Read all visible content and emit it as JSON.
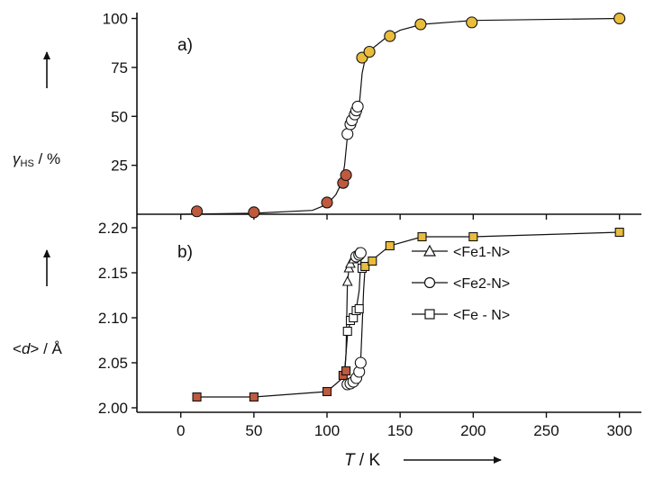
{
  "chart_data": [
    {
      "panel": "a)",
      "type": "scatter",
      "ylabel_symbol": "γ",
      "ylabel_subscript": "HS",
      "ylabel_unit": " / %",
      "yticks": [
        25,
        50,
        75,
        100
      ],
      "ylim": [
        0,
        103
      ],
      "xlim": [
        -30,
        315
      ],
      "line": [
        [
          0,
          0
        ],
        [
          50,
          0.5
        ],
        [
          90,
          2
        ],
        [
          100,
          5
        ],
        [
          106,
          10
        ],
        [
          110,
          16
        ],
        [
          112,
          25
        ],
        [
          114,
          40
        ],
        [
          116,
          47
        ],
        [
          118,
          50
        ],
        [
          120,
          52
        ],
        [
          122,
          55
        ],
        [
          124,
          72
        ],
        [
          126,
          79
        ],
        [
          130,
          84
        ],
        [
          140,
          90
        ],
        [
          150,
          94
        ],
        [
          165,
          97
        ],
        [
          200,
          99
        ],
        [
          300,
          100
        ]
      ],
      "series": [
        {
          "style": "filled-red-circle",
          "points": [
            [
              11,
              1.5
            ],
            [
              50,
              1
            ],
            [
              100,
              6
            ],
            [
              111,
              16
            ],
            [
              113,
              20
            ]
          ]
        },
        {
          "style": "open-circle",
          "points": [
            [
              114,
              41
            ],
            [
              116,
              46
            ],
            [
              117,
              48
            ],
            [
              119,
              51
            ],
            [
              120,
              53
            ],
            [
              121,
              55
            ]
          ]
        },
        {
          "style": "filled-yellow-circle",
          "points": [
            [
              124,
              80
            ],
            [
              129,
              83
            ],
            [
              143,
              91
            ],
            [
              164,
              97
            ],
            [
              199,
              98
            ],
            [
              300,
              100
            ]
          ]
        }
      ]
    },
    {
      "panel": "b)",
      "type": "scatter",
      "ylabel_left": "<",
      "ylabel_symbol": "d",
      "ylabel_right": ">",
      "ylabel_unit": " / Å",
      "yticks": [
        2.0,
        2.05,
        2.1,
        2.15,
        2.2
      ],
      "ytick_labels": [
        "2.00",
        "2.05",
        "2.10",
        "2.15",
        "2.20"
      ],
      "ylim": [
        1.995,
        2.215
      ],
      "xlim": [
        -30,
        315
      ],
      "xticks": [
        0,
        50,
        100,
        150,
        200,
        250,
        300
      ],
      "xlabel_symbol": "T",
      "xlabel_unit": " / K",
      "legend": [
        {
          "label": "<Fe1-N>",
          "marker": "triangle"
        },
        {
          "label": "<Fe2-N>",
          "marker": "circle"
        },
        {
          "label": "<Fe - N>",
          "marker": "square"
        }
      ],
      "lines": [
        [
          [
            11,
            2.012
          ],
          [
            50,
            2.012
          ],
          [
            100,
            2.018
          ],
          [
            110,
            2.032
          ],
          [
            112,
            2.04
          ],
          [
            113,
            2.06
          ],
          [
            113.5,
            2.1
          ],
          [
            114,
            2.14
          ],
          [
            115,
            2.155
          ],
          [
            117,
            2.165
          ],
          [
            119,
            2.17
          ],
          [
            121,
            2.172
          ],
          [
            123,
            2.17
          ]
        ],
        [
          [
            112,
            2.025
          ],
          [
            116,
            2.026
          ],
          [
            119,
            2.028
          ],
          [
            121,
            2.032
          ],
          [
            122,
            2.038
          ],
          [
            123,
            2.05
          ],
          [
            124,
            2.09
          ],
          [
            125,
            2.13
          ],
          [
            126,
            2.155
          ],
          [
            130,
            2.163
          ],
          [
            143,
            2.18
          ],
          [
            165,
            2.19
          ],
          [
            200,
            2.19
          ],
          [
            300,
            2.195
          ]
        ],
        [
          [
            112,
            2.035
          ],
          [
            113,
            2.06
          ],
          [
            114,
            2.08
          ],
          [
            116,
            2.097
          ],
          [
            118,
            2.1
          ],
          [
            120,
            2.11
          ],
          [
            122,
            2.13
          ],
          [
            123,
            2.16
          ],
          [
            124,
            2.17
          ],
          [
            126,
            2.17
          ]
        ]
      ],
      "series": [
        {
          "style": "filled-red-square",
          "points": [
            [
              11,
              2.012
            ],
            [
              50,
              2.012
            ],
            [
              100,
              2.018
            ],
            [
              111,
              2.036
            ],
            [
              113,
              2.041
            ]
          ]
        },
        {
          "style": "open-triangle",
          "points": [
            [
              114,
              2.14
            ],
            [
              115,
              2.155
            ],
            [
              116,
              2.16
            ],
            [
              118,
              2.165
            ],
            [
              120,
              2.17
            ],
            [
              121,
              2.172
            ]
          ]
        },
        {
          "style": "open-circle",
          "points": [
            [
              114,
              2.026
            ],
            [
              116,
              2.027
            ],
            [
              118,
              2.029
            ],
            [
              120,
              2.033
            ],
            [
              122,
              2.04
            ],
            [
              123,
              2.05
            ],
            [
              120,
              2.168
            ],
            [
              122,
              2.17
            ],
            [
              123,
              2.172
            ]
          ]
        },
        {
          "style": "open-square",
          "points": [
            [
              114,
              2.085
            ],
            [
              116,
              2.097
            ],
            [
              118,
              2.1
            ],
            [
              120,
              2.108
            ],
            [
              122,
              2.11
            ],
            [
              124,
              2.155
            ]
          ]
        },
        {
          "style": "filled-yellow-square",
          "points": [
            [
              126,
              2.157
            ],
            [
              131,
              2.163
            ],
            [
              143,
              2.18
            ],
            [
              165,
              2.19
            ],
            [
              200,
              2.19
            ],
            [
              300,
              2.195
            ]
          ]
        }
      ]
    }
  ],
  "colors": {
    "red": "#bf5a3e",
    "yellow": "#e9bd3b",
    "axis": "#111111"
  }
}
